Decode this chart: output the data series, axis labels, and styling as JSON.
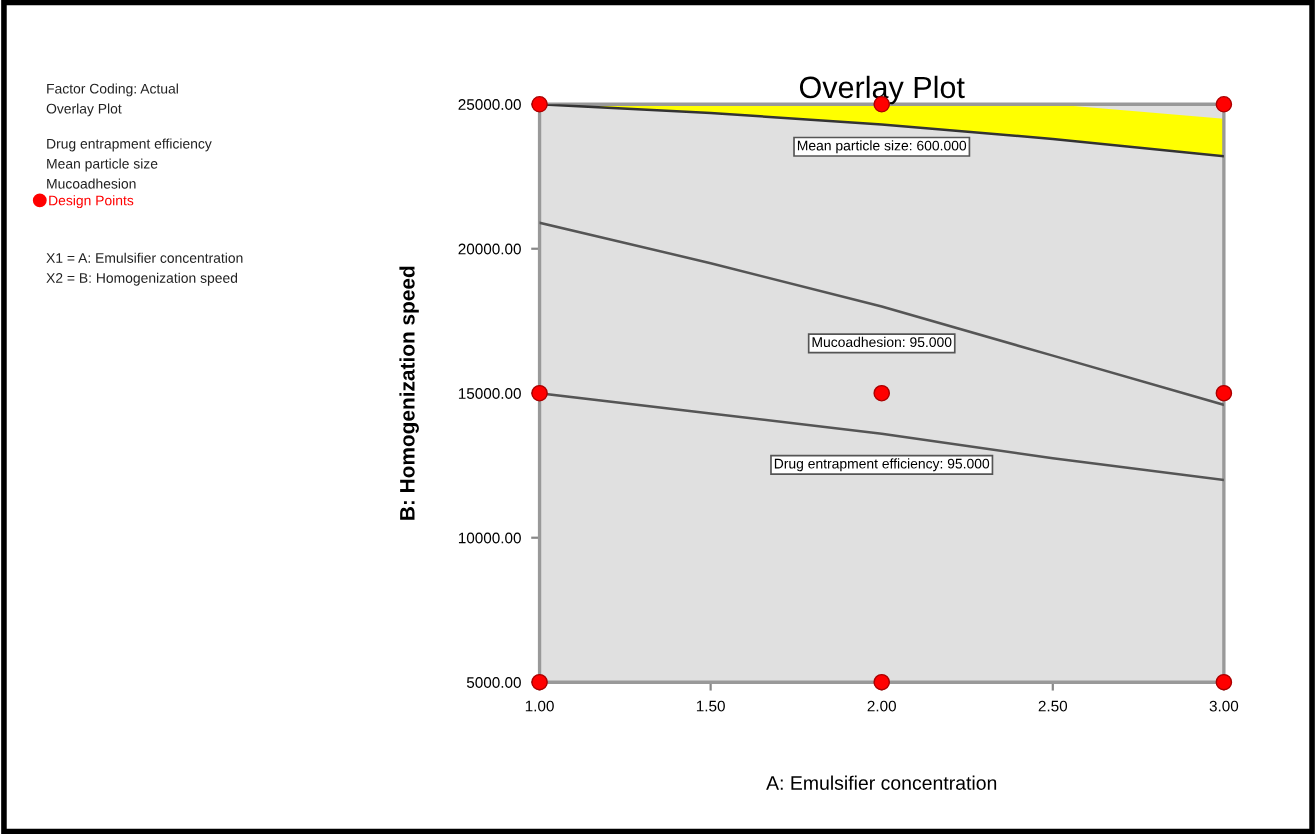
{
  "chart_data": {
    "type": "line",
    "title": "Overlay Plot",
    "xlabel": "A: Emulsifier concentration",
    "ylabel": "B: Homogenization speed",
    "annotations": [
      "Factor Coding: Actual",
      "Overlay Plot",
      "Drug entrapment efficiency",
      "Mean particle size",
      "Mucoadhesion",
      "X1 = A: Emulsifier concentration",
      "X2 = B: Homogenization speed"
    ],
    "series": [
      {
        "name": "Mean particle size: 600.000",
        "color": "#333333",
        "x": [
          1,
          1.5,
          2,
          2.5,
          3
        ],
        "values": [
          25000,
          24700,
          24300,
          23800,
          23200
        ],
        "lower": [
          25000,
          24700,
          24300,
          23800,
          23200
        ],
        "upper": [
          25000,
          25000,
          25000,
          25000,
          24500
        ]
      },
      {
        "name": "Mucoadhesion: 95.000",
        "color": "#555555",
        "x": [
          1,
          1.5,
          2,
          2.5,
          3
        ],
        "values": [
          20900,
          19500,
          18000,
          16300,
          14600
        ]
      },
      {
        "name": "Drug entrapment efficiency: 95.000",
        "color": "#555555",
        "x": [
          1,
          1.5,
          2,
          2.5,
          3
        ],
        "values": [
          15000,
          14300,
          13600,
          12750,
          12000
        ]
      },
      {
        "name": "Design Points",
        "type": "scatter",
        "color": "#ff0000",
        "marker": "circle",
        "x": [
          1,
          2,
          3,
          1,
          2,
          3,
          1,
          2,
          3
        ],
        "values": [
          25000,
          25000,
          25000,
          15000,
          15000,
          15000,
          5000,
          5000,
          5000
        ]
      }
    ],
    "xlim": [
      1,
      3
    ],
    "ylim": [
      5000,
      25000
    ],
    "xticks": [
      {
        "value": 1,
        "label": "1.00"
      },
      {
        "value": 1.5,
        "label": "1.50"
      },
      {
        "value": 2,
        "label": "2.00"
      },
      {
        "value": 2.5,
        "label": "2.50"
      },
      {
        "value": 3,
        "label": "3.00"
      }
    ],
    "yticks": [
      {
        "value": 5000,
        "label": "5000.00"
      },
      {
        "value": 10000,
        "label": "10000.00"
      },
      {
        "value": 15000,
        "label": "15000.00"
      },
      {
        "value": 20000,
        "label": "20000.00"
      },
      {
        "value": 25000,
        "label": "25000.00"
      }
    ],
    "grid": false,
    "legend": "left"
  }
}
